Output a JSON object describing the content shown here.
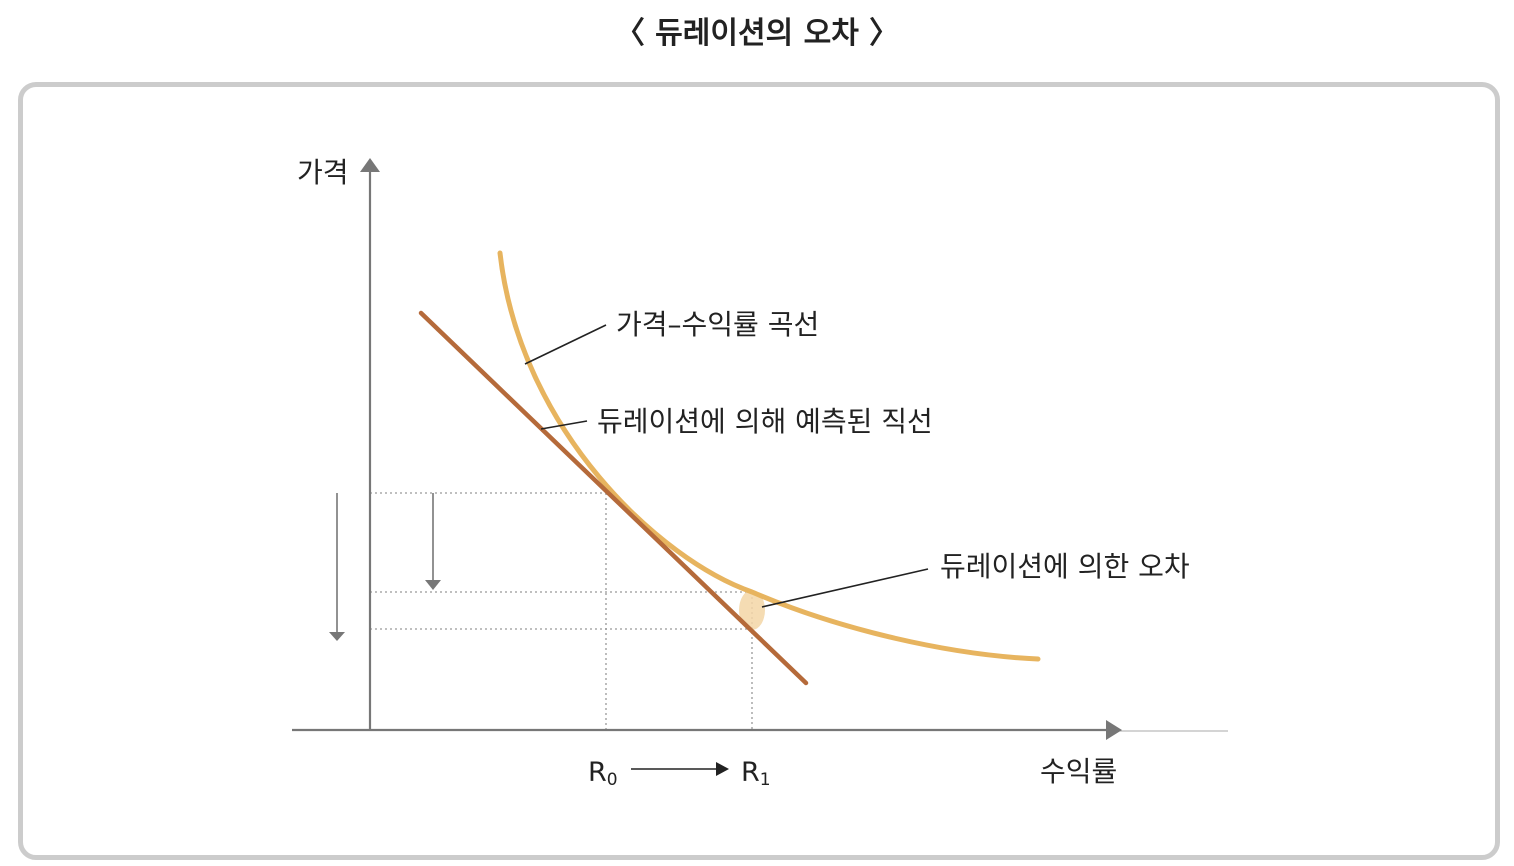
{
  "title": "〈 듀레이션의 오차 〉",
  "diagram": {
    "y_axis_label": "가격",
    "x_axis_label": "수익률",
    "curve_label": "가격–수익률 곡선",
    "line_label": "듀레이션에 의해 예측된 직선",
    "error_label": "듀레이션에 의한 오차",
    "r0": {
      "main": "R",
      "sub": "0"
    },
    "r1": {
      "main": "R",
      "sub": "1"
    }
  },
  "colors": {
    "curve": "#E7B45F",
    "tangent": "#B56A3A",
    "axis": "#777777",
    "guide": "#999999",
    "error_highlight": "#F3D6A6",
    "panel_border": "#cccccc"
  }
}
